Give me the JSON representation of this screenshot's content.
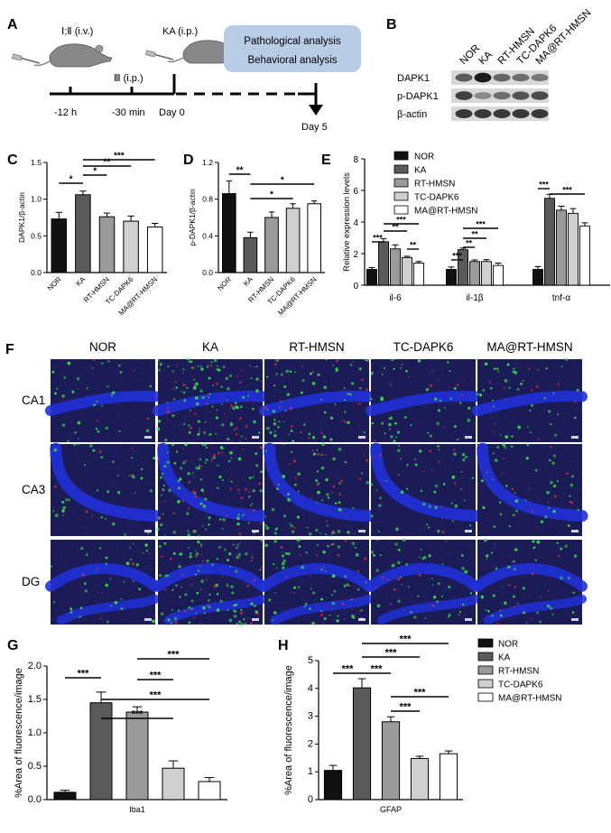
{
  "panel_labels": {
    "a": "A",
    "b": "B",
    "c": "C",
    "d": "D",
    "e": "E",
    "f": "F",
    "g": "G",
    "h": "H"
  },
  "timeline": {
    "injection_1": "Ⅰ;Ⅱ (i.v.)",
    "injection_2": "Ⅲ (i.p.)",
    "injection_3": "KA (i.p.)",
    "t1": "-12 h",
    "t2": "-30 min",
    "t3": "Day 0",
    "t4": "Day 5",
    "box_line1": "Pathological analysis",
    "box_line2": "Behavioral analysis"
  },
  "western": {
    "lanes": [
      "NOR",
      "KA",
      "RT-HMSN",
      "TC-DAPK6",
      "MA@RT-HMSN"
    ],
    "rows": [
      "DAPK1",
      "p-DAPK1",
      "β-actin"
    ],
    "intensity": {
      "DAPK1": [
        0.6,
        0.95,
        0.55,
        0.5,
        0.45
      ],
      "p-DAPK1": [
        0.75,
        0.35,
        0.5,
        0.65,
        0.7
      ],
      "β-actin": [
        0.8,
        0.8,
        0.8,
        0.8,
        0.8
      ]
    }
  },
  "groups": [
    "NOR",
    "KA",
    "RT-HMSN",
    "TC-DAPK6",
    "MA@RT-HMSN"
  ],
  "group_colors": [
    "#111111",
    "#5a5a5a",
    "#9a9a9a",
    "#cfcfcf",
    "#ffffff"
  ],
  "chart_data": [
    {
      "id": "C",
      "type": "bar",
      "categories": [
        "NOR",
        "KA",
        "RT-HMSN",
        "TC-DAPK6",
        "MA@RT-HMSN"
      ],
      "values": [
        0.73,
        1.06,
        0.76,
        0.7,
        0.62
      ],
      "errors": [
        0.09,
        0.05,
        0.05,
        0.07,
        0.05
      ],
      "ylabel": "DAPK1/β-actin",
      "ylim": [
        0,
        1.5
      ],
      "yticks": [
        "0.0",
        "0.5",
        "1.0",
        "1.5"
      ],
      "sig": [
        {
          "a": 0,
          "b": 1,
          "label": "*"
        },
        {
          "a": 1,
          "b": 2,
          "label": "*"
        },
        {
          "a": 1,
          "b": 3,
          "label": "**"
        },
        {
          "a": 1,
          "b": 4,
          "label": "***"
        }
      ]
    },
    {
      "id": "D",
      "type": "bar",
      "categories": [
        "NOR",
        "KA",
        "RT-HMSN",
        "TC-DAPK6",
        "MA@RT-HMSN"
      ],
      "values": [
        0.86,
        0.38,
        0.6,
        0.7,
        0.75
      ],
      "errors": [
        0.14,
        0.06,
        0.06,
        0.05,
        0.03
      ],
      "ylabel": "p-DAPK1/β-actin",
      "ylim": [
        0,
        1.2
      ],
      "yticks": [
        "0.0",
        "0.4",
        "0.8",
        "1.2"
      ],
      "sig": [
        {
          "a": 0,
          "b": 1,
          "label": "**"
        },
        {
          "a": 1,
          "b": 3,
          "label": "*"
        },
        {
          "a": 1,
          "b": 4,
          "label": "*"
        }
      ]
    },
    {
      "id": "E",
      "type": "bar",
      "categories": [
        "il-6",
        "il-1β",
        "tnf-α"
      ],
      "series": [
        {
          "name": "NOR",
          "values": [
            1.0,
            1.0,
            1.0
          ],
          "errors": [
            0.12,
            0.15,
            0.18
          ]
        },
        {
          "name": "KA",
          "values": [
            2.75,
            2.25,
            5.5
          ],
          "errors": [
            0.2,
            0.1,
            0.25
          ]
        },
        {
          "name": "RT-HMSN",
          "values": [
            2.3,
            1.5,
            4.75
          ],
          "errors": [
            0.25,
            0.1,
            0.25
          ]
        },
        {
          "name": "TC-DAPK6",
          "values": [
            1.75,
            1.5,
            4.55
          ],
          "errors": [
            0.08,
            0.12,
            0.3
          ]
        },
        {
          "name": "MA@RT-HMSN",
          "values": [
            1.4,
            1.25,
            3.75
          ],
          "errors": [
            0.1,
            0.15,
            0.2
          ]
        }
      ],
      "ylabel": "Relative expression levels",
      "ylim": [
        0,
        8
      ],
      "yticks": [
        "0",
        "2",
        "4",
        "6",
        "8"
      ],
      "sig": [
        {
          "cat": 0,
          "a": 0,
          "b": 1,
          "label": "***"
        },
        {
          "cat": 0,
          "a": 1,
          "b": 3,
          "label": "**"
        },
        {
          "cat": 0,
          "a": 1,
          "b": 4,
          "label": "***"
        },
        {
          "cat": 0,
          "a": 3,
          "b": 4,
          "label": "**"
        },
        {
          "cat": 1,
          "a": 0,
          "b": 1,
          "label": "***"
        },
        {
          "cat": 1,
          "a": 1,
          "b": 2,
          "label": "**"
        },
        {
          "cat": 1,
          "a": 1,
          "b": 3,
          "label": "**"
        },
        {
          "cat": 1,
          "a": 1,
          "b": 4,
          "label": "***"
        },
        {
          "cat": 2,
          "a": 0,
          "b": 1,
          "label": "***"
        },
        {
          "cat": 2,
          "a": 1,
          "b": 4,
          "label": "***"
        }
      ]
    },
    {
      "id": "G",
      "type": "bar",
      "categories": [
        "NOR",
        "KA",
        "RT-HMSN",
        "TC-DAPK6",
        "MA@RT-HMSN"
      ],
      "values": [
        0.11,
        1.45,
        1.31,
        0.47,
        0.27
      ],
      "errors": [
        0.03,
        0.16,
        0.08,
        0.11,
        0.06
      ],
      "ylabel": "%Area of fluorescence/image",
      "xlabel": "Iba1",
      "ylim": [
        0,
        2.0
      ],
      "yticks": [
        "0.0",
        "0.5",
        "1.0",
        "1.5",
        "2.0"
      ],
      "sig": [
        {
          "a": 0,
          "b": 1,
          "label": "***"
        },
        {
          "a": 1,
          "b": 3,
          "label": "***"
        },
        {
          "a": 1,
          "b": 4,
          "label": "***"
        },
        {
          "a": 2,
          "b": 3,
          "label": "***"
        },
        {
          "a": 2,
          "b": 4,
          "label": "***"
        }
      ]
    },
    {
      "id": "H",
      "type": "bar",
      "categories": [
        "NOR",
        "KA",
        "RT-HMSN",
        "TC-DAPK6",
        "MA@RT-HMSN"
      ],
      "values": [
        1.05,
        4.02,
        2.8,
        1.48,
        1.65
      ],
      "errors": [
        0.18,
        0.33,
        0.18,
        0.08,
        0.1
      ],
      "ylabel": "%Area of fluorescence/image",
      "xlabel": "GFAP",
      "ylim": [
        0,
        5
      ],
      "yticks": [
        "0",
        "1",
        "2",
        "3",
        "4",
        "5"
      ],
      "sig": [
        {
          "a": 0,
          "b": 1,
          "label": "***"
        },
        {
          "a": 1,
          "b": 2,
          "label": "***"
        },
        {
          "a": 1,
          "b": 3,
          "label": "***"
        },
        {
          "a": 1,
          "b": 4,
          "label": "***"
        },
        {
          "a": 2,
          "b": 3,
          "label": "***"
        },
        {
          "a": 2,
          "b": 4,
          "label": "***"
        }
      ]
    }
  ],
  "microscopy": {
    "columns": [
      "NOR",
      "KA",
      "RT-HMSN",
      "TC-DAPK6",
      "MA@RT-HMSN"
    ],
    "rows": [
      "CA1",
      "CA3",
      "DG"
    ],
    "microglia_level": [
      0.2,
      1.0,
      0.6,
      0.35,
      0.3
    ]
  }
}
